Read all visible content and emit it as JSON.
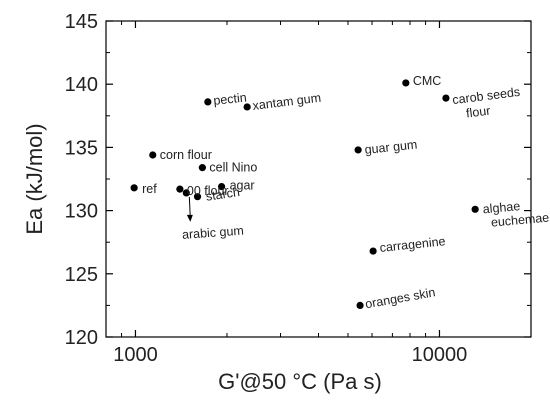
{
  "chart_data": {
    "type": "scatter",
    "title": "",
    "xlabel": "G'@50 °C (Pa s)",
    "ylabel": "Ea (kJ/mol)",
    "x_scale": "log",
    "xlim": [
      800,
      20000
    ],
    "ylim": [
      120,
      145
    ],
    "x_ticks": [
      1000,
      10000
    ],
    "x_tick_labels": [
      "1000",
      "10000"
    ],
    "y_ticks": [
      120,
      125,
      130,
      135,
      140,
      145
    ],
    "y_tick_labels": [
      "120",
      "125",
      "130",
      "135",
      "140",
      "145"
    ],
    "grid": false,
    "legend": "none",
    "marker_color": "#000000",
    "points": [
      {
        "label": "ref",
        "x": 990,
        "y": 131.8
      },
      {
        "label": "corn flour",
        "x": 1140,
        "y": 134.4
      },
      {
        "label": "00 flour",
        "x": 1400,
        "y": 131.7
      },
      {
        "label": "arabic gum",
        "x": 1470,
        "y": 131.4
      },
      {
        "label": "starch",
        "x": 1600,
        "y": 131.1
      },
      {
        "label": "cell Nino",
        "x": 1660,
        "y": 133.4
      },
      {
        "label": "pectin",
        "x": 1730,
        "y": 138.6
      },
      {
        "label": "agar",
        "x": 1920,
        "y": 131.9
      },
      {
        "label": "xantam gum",
        "x": 2330,
        "y": 138.2
      },
      {
        "label": "guar gum",
        "x": 5400,
        "y": 134.8
      },
      {
        "label": "oranges skin",
        "x": 5480,
        "y": 122.5
      },
      {
        "label": "carragenine",
        "x": 6050,
        "y": 126.8
      },
      {
        "label": "CMC",
        "x": 7750,
        "y": 140.1
      },
      {
        "label": "carob seeds flour",
        "x": 10500,
        "y": 138.9
      },
      {
        "label": "alghae euchemae",
        "x": 13100,
        "y": 130.1
      }
    ]
  }
}
